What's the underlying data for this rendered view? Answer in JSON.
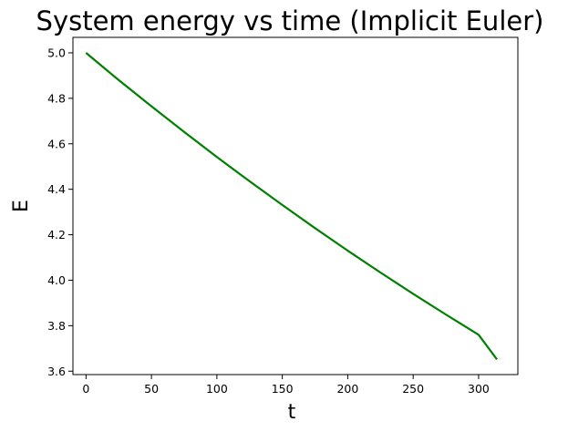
{
  "chart_data": {
    "type": "line",
    "title": "System energy vs time (Implicit Euler)",
    "xlabel": "t",
    "ylabel": "E",
    "xlim": [
      -10,
      330
    ],
    "ylim": [
      3.585,
      5.068
    ],
    "xticks": [
      0,
      50,
      100,
      150,
      200,
      250,
      300
    ],
    "xtick_labels": [
      "0",
      "50",
      "100",
      "150",
      "200",
      "250",
      "300"
    ],
    "yticks": [
      3.6,
      3.8,
      4.0,
      4.2,
      4.4,
      4.6,
      4.8,
      5.0
    ],
    "ytick_labels": [
      "3.6",
      "3.8",
      "4.0",
      "4.2",
      "4.4",
      "4.6",
      "4.8",
      "5.0"
    ],
    "grid": false,
    "series": [
      {
        "color": "#008000",
        "x": [
          0,
          25,
          50,
          75,
          100,
          125,
          150,
          175,
          200,
          225,
          250,
          275,
          300,
          314
        ],
        "y": [
          5.0,
          4.88,
          4.765,
          4.652,
          4.542,
          4.435,
          4.331,
          4.229,
          4.13,
          4.034,
          3.94,
          3.849,
          3.76,
          3.652
        ]
      }
    ]
  }
}
